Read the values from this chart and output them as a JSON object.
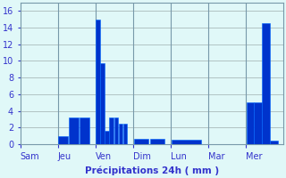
{
  "days": [
    "Sam",
    "Jeu",
    "Ven",
    "Dim",
    "Lun",
    "Mar",
    "Mer"
  ],
  "bars": [
    {
      "day": "Sam",
      "values": []
    },
    {
      "day": "Jeu",
      "values": [
        1.0,
        3.2,
        3.2
      ]
    },
    {
      "day": "Ven",
      "values": [
        15.0,
        9.7,
        1.6,
        3.2,
        3.2,
        2.5,
        2.5
      ]
    },
    {
      "day": "Dim",
      "values": [
        0.7,
        0.7
      ]
    },
    {
      "day": "Lun",
      "values": [
        0.6
      ]
    },
    {
      "day": "Mar",
      "values": []
    },
    {
      "day": "Mer",
      "values": [
        5.0,
        5.0,
        14.5,
        0.4
      ]
    }
  ],
  "bar_color": "#0033CC",
  "bar_edge_color": "#0066FF",
  "background_color": "#E0F8F8",
  "grid_color": "#AABBBB",
  "text_color": "#3333CC",
  "xlabel": "Précipitations 24h ( mm )",
  "ylim": [
    0,
    17
  ],
  "yticks": [
    0,
    2,
    4,
    6,
    8,
    10,
    12,
    14,
    16
  ],
  "label_fontsize": 7.5,
  "tick_fontsize": 7.0,
  "figwidth": 3.2,
  "figheight": 2.0,
  "dpi": 100
}
